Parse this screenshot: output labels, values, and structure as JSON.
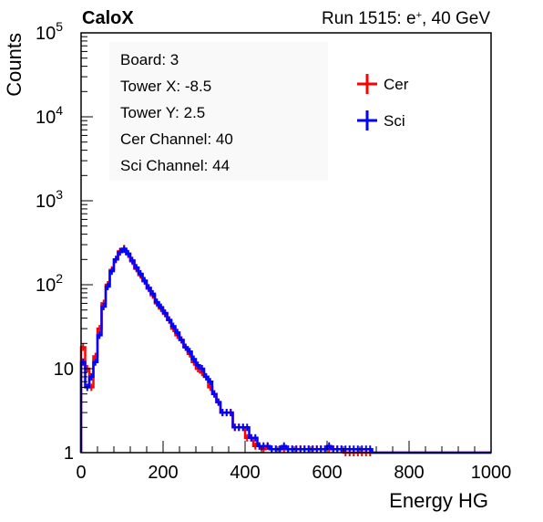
{
  "header": {
    "left_title": "CaloX",
    "right_title_prefix": "Run 1515: e",
    "right_title_sup": "+",
    "right_title_suffix": ", 40 GeV"
  },
  "info_box": {
    "lines": [
      "Board: 3",
      "Tower X: -8.5",
      "Tower Y: 2.5",
      "Cer Channel: 40",
      "Sci Channel: 44"
    ]
  },
  "legend": {
    "entries": [
      {
        "label": "Cer",
        "color": "#ff0000"
      },
      {
        "label": "Sci",
        "color": "#0000ff"
      }
    ]
  },
  "chart_data": {
    "type": "line",
    "style": "histogram-step",
    "xlabel": "Energy HG",
    "ylabel": "Counts",
    "xlim": [
      0,
      1000
    ],
    "ylim": [
      1,
      100000
    ],
    "ylog": true,
    "x_ticks": [
      {
        "value": 0,
        "label": "0"
      },
      {
        "value": 200,
        "label": "200"
      },
      {
        "value": 400,
        "label": "400"
      },
      {
        "value": 600,
        "label": "600"
      },
      {
        "value": 800,
        "label": "800"
      },
      {
        "value": 1000,
        "label": "1000"
      }
    ],
    "y_ticks": [
      {
        "value": 1,
        "base": "1",
        "exp": ""
      },
      {
        "value": 10,
        "base": "10",
        "exp": ""
      },
      {
        "value": 100,
        "base": "10",
        "exp": "2"
      },
      {
        "value": 1000,
        "base": "10",
        "exp": "3"
      },
      {
        "value": 10000,
        "base": "10",
        "exp": "4"
      },
      {
        "value": 100000,
        "base": "10",
        "exp": "5"
      }
    ],
    "x": [
      0,
      10,
      20,
      30,
      40,
      50,
      60,
      70,
      80,
      90,
      100,
      110,
      120,
      130,
      140,
      150,
      160,
      170,
      180,
      190,
      200,
      210,
      220,
      230,
      240,
      250,
      260,
      270,
      280,
      290,
      300,
      310,
      320,
      330,
      340,
      350,
      360,
      370,
      380,
      390,
      400,
      410,
      420,
      430,
      440,
      450,
      460,
      470,
      480,
      490,
      500,
      510,
      520,
      530,
      540,
      550,
      560,
      570,
      580,
      590,
      600,
      610,
      620,
      630,
      640,
      650,
      660,
      670,
      680,
      690,
      700
    ],
    "series": [
      {
        "name": "Cer",
        "color": "#ff0000",
        "values": [
          18,
          10,
          6,
          14,
          30,
          60,
          100,
          150,
          200,
          250,
          270,
          230,
          190,
          155,
          130,
          110,
          90,
          75,
          60,
          52,
          45,
          38,
          30,
          25,
          22,
          18,
          15,
          12,
          10,
          9,
          8,
          6,
          5,
          4,
          3,
          3,
          3,
          2,
          2,
          2,
          1.5,
          1.5,
          1.2,
          1.2,
          1.1,
          1.2,
          1.1,
          1.1,
          1.1,
          1.1,
          1.1,
          1.1,
          1.1,
          1.1,
          1.1,
          1.1,
          1.1,
          1.1,
          1.1,
          1.1,
          1.1,
          1.1,
          1.1,
          1.1,
          1,
          1,
          1,
          1,
          1,
          1,
          1
        ]
      },
      {
        "name": "Sci",
        "color": "#0000ff",
        "values": [
          12,
          6,
          8,
          12,
          25,
          55,
          95,
          145,
          200,
          245,
          265,
          235,
          195,
          160,
          135,
          112,
          92,
          78,
          62,
          54,
          46,
          38,
          32,
          27,
          22,
          18,
          16,
          13,
          11,
          10,
          8,
          7,
          5,
          4,
          3,
          3,
          3,
          2,
          2,
          2,
          2,
          1.5,
          1.5,
          1.2,
          1.2,
          1.2,
          1.1,
          1.1,
          1.1,
          1.2,
          1.1,
          1.1,
          1.1,
          1.1,
          1.1,
          1.1,
          1.1,
          1.1,
          1.1,
          1.1,
          1.2,
          1.1,
          1.1,
          1.1,
          1.1,
          1.1,
          1.1,
          1.1,
          1.1,
          1.1,
          1.1
        ]
      }
    ]
  }
}
